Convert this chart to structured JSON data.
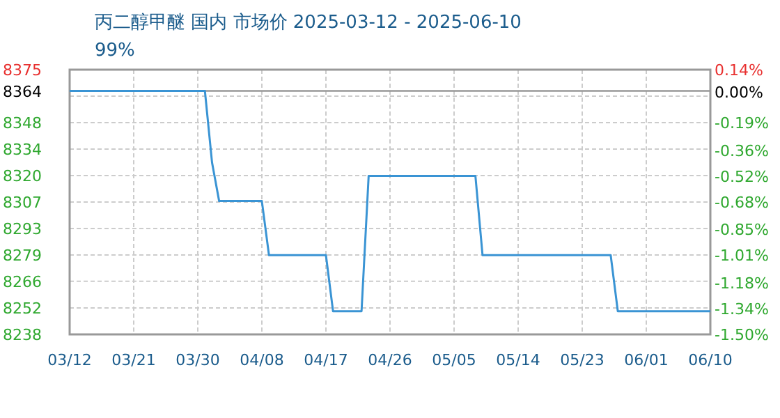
{
  "chart_data": {
    "type": "line",
    "title": "丙二醇甲醚 国内 市场价 2025-03-12 - 2025-06-10",
    "subtitle": "99%",
    "x": [
      "2025-03-12",
      "2025-03-31",
      "2025-04-01",
      "2025-04-02",
      "2025-04-08",
      "2025-04-09",
      "2025-04-17",
      "2025-04-18",
      "2025-04-22",
      "2025-04-23",
      "2025-05-08",
      "2025-05-09",
      "2025-05-27",
      "2025-05-28",
      "2025-06-10"
    ],
    "series": [
      {
        "color": "#3a94d4",
        "values": [
          8364,
          8364,
          8327,
          8307,
          8307,
          8279,
          8279,
          8250,
          8250,
          8320,
          8320,
          8279,
          8279,
          8250,
          8250
        ]
      }
    ],
    "xlim": [
      "2025-03-12",
      "2025-06-10"
    ],
    "xticks": [
      {
        "value": "2025-03-12",
        "label": "03/12"
      },
      {
        "value": "2025-03-21",
        "label": "03/21"
      },
      {
        "value": "2025-03-30",
        "label": "03/30"
      },
      {
        "value": "2025-04-08",
        "label": "04/08"
      },
      {
        "value": "2025-04-17",
        "label": "04/17"
      },
      {
        "value": "2025-04-26",
        "label": "04/26"
      },
      {
        "value": "2025-05-05",
        "label": "05/05"
      },
      {
        "value": "2025-05-14",
        "label": "05/14"
      },
      {
        "value": "2025-05-23",
        "label": "05/23"
      },
      {
        "value": "2025-06-01",
        "label": "06/01"
      },
      {
        "value": "2025-06-10",
        "label": "06/10"
      }
    ],
    "ylim": [
      8238,
      8375
    ],
    "yticks": [
      8375,
      {
        "value": 8361.3,
        "label": null
      },
      {
        "value": 8347.6,
        "label": "8348"
      },
      {
        "value": 8333.9,
        "label": "8334"
      },
      {
        "value": 8320.2,
        "label": "8320"
      },
      {
        "value": 8306.5,
        "label": "8307"
      },
      {
        "value": 8292.8,
        "label": "8293"
      },
      {
        "value": 8279.1,
        "label": "8279"
      },
      {
        "value": 8265.5,
        "label": "8266"
      },
      {
        "value": 8251.7,
        "label": "8252"
      },
      8238
    ],
    "y2lim": [
      -1.5,
      0.14
    ],
    "y2ticks": [
      {
        "value": 0.14,
        "label": "0.14%"
      },
      {
        "value": 0,
        "label": "0.00%"
      },
      {
        "value": -0.19,
        "label": "-0.19%"
      },
      {
        "value": -0.36,
        "label": "-0.36%"
      },
      {
        "value": -0.52,
        "label": "-0.52%"
      },
      {
        "value": -0.68,
        "label": "-0.68%"
      },
      {
        "value": -0.85,
        "label": "-0.85%"
      },
      {
        "value": -1.01,
        "label": "-1.01%"
      },
      {
        "value": -1.18,
        "label": "-1.18%"
      },
      {
        "value": -1.34,
        "label": "-1.34%"
      },
      {
        "value": -1.5,
        "label": "-1.50%"
      }
    ],
    "ref_lines": [
      {
        "axis": "y",
        "value": 8364,
        "label": "8364",
        "color": "#999999"
      }
    ],
    "grid": true,
    "line_style": "solid",
    "marker": "none"
  }
}
